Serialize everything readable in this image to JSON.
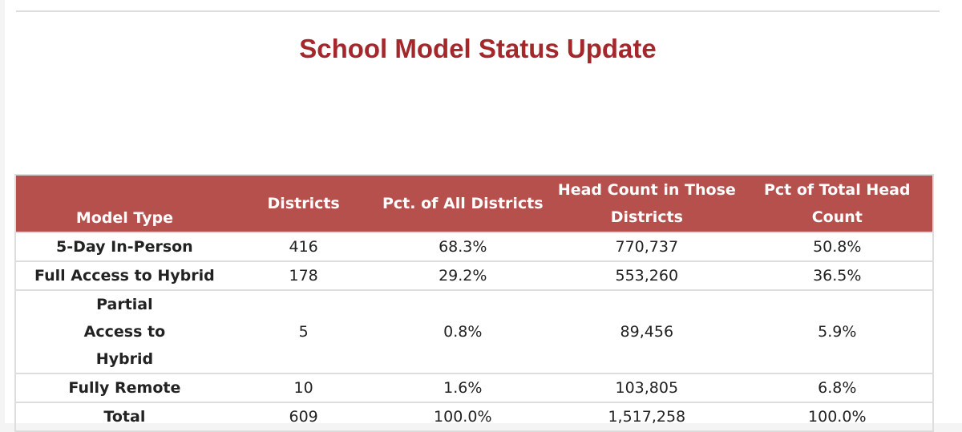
{
  "title": "School Model Status Update",
  "table": {
    "headers": [
      "Model Type",
      "Districts",
      "Pct. of All Districts",
      "Head Count in Those Districts",
      "Pct of Total Head Count"
    ],
    "rows": [
      [
        "5-Day In-Person",
        "416",
        "68.3%",
        "770,737",
        "50.8%"
      ],
      [
        "Full Access to Hybrid",
        "178",
        "29.2%",
        "553,260",
        "36.5%"
      ],
      [
        "Partial Access to Hybrid",
        "5",
        "0.8%",
        "89,456",
        "5.9%"
      ],
      [
        "Fully Remote",
        "10",
        "1.6%",
        "103,805",
        "6.8%"
      ],
      [
        "Total",
        "609",
        "100.0%",
        "1,517,258",
        "100.0%"
      ]
    ]
  },
  "colors": {
    "header": "#b5504c",
    "title": "#a3272b"
  }
}
